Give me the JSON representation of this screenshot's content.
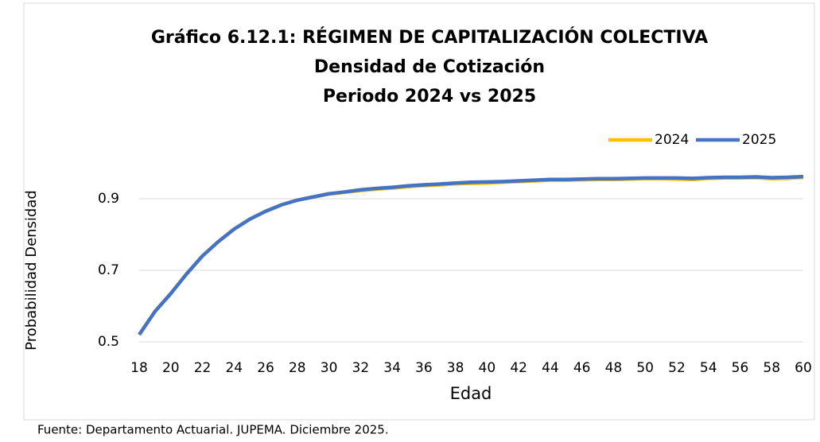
{
  "chart_data": {
    "type": "line",
    "title": "Gráfico 6.12.1: RÉGIMEN DE CAPITALIZACIÓN COLECTIVA",
    "subtitle": [
      "Densidad de Cotización",
      "Periodo 2024 vs 2025"
    ],
    "x_label": "Edad",
    "y_label": "Probabilidad Densidad",
    "source": "Fuente: Departamento Actuarial. JUPEMA. Diciembre 2025.",
    "x": [
      18,
      19,
      20,
      21,
      22,
      23,
      24,
      25,
      26,
      27,
      28,
      29,
      30,
      31,
      32,
      33,
      34,
      35,
      36,
      37,
      38,
      39,
      40,
      41,
      42,
      43,
      44,
      45,
      46,
      47,
      48,
      49,
      50,
      51,
      52,
      53,
      54,
      55,
      56,
      57,
      58,
      59,
      60
    ],
    "series": [
      {
        "name": "2024",
        "color": "#ffc000",
        "values": [
          0.52,
          0.585,
          0.635,
          0.69,
          0.74,
          0.78,
          0.815,
          0.843,
          0.865,
          0.883,
          0.896,
          0.905,
          0.913,
          0.918,
          0.923,
          0.927,
          0.93,
          0.934,
          0.937,
          0.939,
          0.942,
          0.943,
          0.944,
          0.946,
          0.948,
          0.95,
          0.952,
          0.952,
          0.953,
          0.954,
          0.954,
          0.955,
          0.956,
          0.956,
          0.955,
          0.954,
          0.957,
          0.958,
          0.958,
          0.959,
          0.956,
          0.957,
          0.96
        ]
      },
      {
        "name": "2025",
        "color": "#4472c4",
        "values": [
          0.52,
          0.585,
          0.635,
          0.69,
          0.74,
          0.78,
          0.815,
          0.843,
          0.865,
          0.883,
          0.896,
          0.905,
          0.914,
          0.919,
          0.925,
          0.929,
          0.932,
          0.936,
          0.939,
          0.941,
          0.944,
          0.946,
          0.947,
          0.948,
          0.95,
          0.952,
          0.954,
          0.954,
          0.955,
          0.956,
          0.956,
          0.957,
          0.958,
          0.958,
          0.958,
          0.957,
          0.959,
          0.96,
          0.96,
          0.961,
          0.959,
          0.96,
          0.962
        ]
      }
    ],
    "xlim": [
      18,
      60
    ],
    "xticks": [
      18,
      20,
      22,
      24,
      26,
      28,
      30,
      32,
      34,
      36,
      38,
      40,
      42,
      44,
      46,
      48,
      50,
      52,
      54,
      56,
      58,
      60
    ],
    "ylim": [
      0.5,
      1.0
    ],
    "yticks": [
      0.5,
      0.7,
      0.9
    ],
    "grid": true,
    "legend": "top-right"
  }
}
